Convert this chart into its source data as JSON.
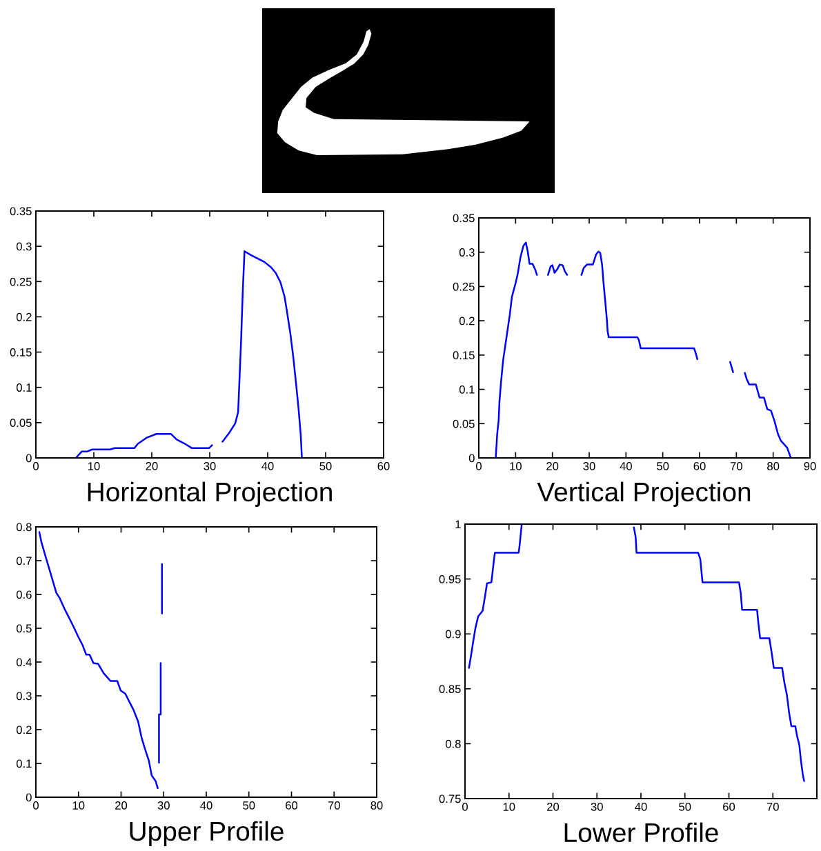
{
  "chart_data": [
    {
      "type": "line",
      "title": "Horizontal Projection",
      "color": "#0000ff",
      "x": [
        6.9,
        7.9,
        8.8,
        9.7,
        12.8,
        13.6,
        17.0,
        17.6,
        19.2,
        20.8,
        23.3,
        24.3,
        25.5,
        26.9,
        29.9,
        30.4,
        31.3,
        32.2,
        33.4,
        34.4,
        34.9,
        35.0,
        35.2,
        35.4,
        35.7,
        36.0,
        37.0,
        38.2,
        39.4,
        40.6,
        41.4,
        42.2,
        42.9,
        43.3,
        43.9,
        44.4,
        44.9,
        45.3,
        45.7,
        45.9
      ],
      "values": [
        0,
        0.009,
        0.009,
        0.012,
        0.012,
        0.014,
        0.014,
        0.02,
        0.029,
        0.034,
        0.034,
        0.026,
        0.021,
        0.014,
        0.014,
        0.018,
        null,
        0.023,
        0.036,
        0.049,
        0.065,
        0.085,
        0.124,
        0.164,
        0.236,
        0.293,
        0.288,
        0.283,
        0.278,
        0.27,
        0.262,
        0.249,
        0.229,
        0.209,
        0.177,
        0.144,
        0.105,
        0.072,
        0.033,
        0
      ],
      "xlim": [
        0,
        60
      ],
      "xticks": [
        0,
        10,
        20,
        30,
        40,
        50,
        60
      ],
      "ylim": [
        0,
        0.35
      ],
      "yticks": [
        0,
        0.05,
        0.1,
        0.15,
        0.2,
        0.25,
        0.3,
        0.35
      ]
    },
    {
      "type": "line",
      "title": "Vertical Projection",
      "color": "#0000ff",
      "x": [
        4.6,
        5.0,
        5.4,
        5.6,
        6.0,
        6.6,
        7.5,
        8.4,
        9.0,
        10.0,
        10.6,
        11.3,
        12.1,
        12.8,
        13.3,
        13.8,
        14.6,
        15.3,
        15.8,
        17.3,
        18.8,
        19.5,
        20.0,
        20.6,
        21.3,
        22.0,
        22.8,
        23.4,
        24.0,
        26.0,
        27.9,
        28.5,
        29.4,
        31.0,
        31.9,
        32.5,
        33.0,
        33.5,
        33.9,
        34.3,
        34.8,
        35.0,
        35.3,
        43.1,
        43.5,
        44.0,
        58.5,
        59.0,
        59.4,
        64.0,
        68.3,
        69.1,
        70.5,
        72.3,
        72.8,
        73.5,
        75.3,
        76.3,
        77.5,
        78.4,
        79.4,
        80.3,
        81.3,
        82.1,
        83.8,
        84.8
      ],
      "values": [
        0,
        0.035,
        0.055,
        0.081,
        0.108,
        0.142,
        0.175,
        0.208,
        0.235,
        0.255,
        0.269,
        0.292,
        0.309,
        0.314,
        0.301,
        0.283,
        0.283,
        0.275,
        0.267,
        null,
        0.267,
        0.279,
        0.281,
        0.27,
        0.275,
        0.282,
        0.281,
        0.272,
        0.267,
        null,
        0.267,
        0.277,
        0.282,
        0.282,
        0.297,
        0.301,
        0.299,
        0.282,
        0.255,
        0.232,
        0.202,
        0.185,
        0.176,
        0.176,
        0.172,
        0.16,
        0.16,
        0.152,
        0.144,
        null,
        0.14,
        0.125,
        null,
        0.124,
        0.115,
        0.107,
        0.107,
        0.088,
        0.088,
        0.071,
        0.069,
        0.055,
        0.035,
        0.025,
        0.015,
        0
      ],
      "xlim": [
        0,
        90
      ],
      "xticks": [
        0,
        10,
        20,
        30,
        40,
        50,
        60,
        70,
        80,
        90
      ],
      "ylim": [
        0,
        0.35
      ],
      "yticks": [
        0,
        0.05,
        0.1,
        0.15,
        0.2,
        0.25,
        0.3,
        0.35
      ]
    },
    {
      "type": "line",
      "title": "Upper Profile",
      "color": "#0000ff",
      "x": [
        0.8,
        1.3,
        2.4,
        3.2,
        4.0,
        4.8,
        5.6,
        6.7,
        7.8,
        8.9,
        9.9,
        11.0,
        11.8,
        12.6,
        13.5,
        14.6,
        15.9,
        17.5,
        19.1,
        19.9,
        21.0,
        21.8,
        22.9,
        24.0,
        24.8,
        25.6,
        26.5,
        27.2,
        28.1,
        28.6,
        28.8,
        28.9,
        28.9,
        29.3,
        29.3,
        29.5,
        29.6,
        29.6
      ],
      "values": [
        0.785,
        0.755,
        0.707,
        0.673,
        0.639,
        0.605,
        0.589,
        0.558,
        0.531,
        0.503,
        0.476,
        0.449,
        0.422,
        0.422,
        0.397,
        0.395,
        0.367,
        0.344,
        0.344,
        0.316,
        0.306,
        0.286,
        0.259,
        0.224,
        0.177,
        0.143,
        0.109,
        0.064,
        0.048,
        0.027,
        null,
        0.102,
        0.245,
        0.245,
        0.397,
        null,
        0.544,
        0.69
      ],
      "xlim": [
        0,
        80
      ],
      "xticks": [
        0,
        10,
        20,
        30,
        40,
        50,
        60,
        70,
        80
      ],
      "ylim": [
        0,
        0.8
      ],
      "yticks": [
        0,
        0.1,
        0.2,
        0.3,
        0.4,
        0.5,
        0.6,
        0.7,
        0.8
      ]
    },
    {
      "type": "line",
      "title": "Lower Profile",
      "color": "#0000ff",
      "x": [
        0.9,
        1.4,
        1.9,
        2.4,
        3.0,
        4.0,
        4.5,
        5.0,
        6.0,
        6.6,
        6.8,
        12.2,
        12.4,
        12.9,
        25.0,
        38.4,
        38.8,
        39.0,
        53.0,
        53.5,
        54.0,
        62.3,
        62.7,
        63.0,
        66.4,
        66.7,
        67.1,
        69.2,
        69.8,
        70.2,
        72.1,
        72.6,
        73.2,
        73.7,
        74.2,
        75.1,
        75.5,
        76.0,
        76.4,
        76.8,
        77.1
      ],
      "values": [
        0.869,
        0.881,
        0.894,
        0.906,
        0.916,
        0.921,
        0.933,
        0.946,
        0.947,
        0.968,
        0.974,
        0.974,
        0.98,
        1,
        null,
        0.997,
        0.988,
        0.974,
        0.974,
        0.968,
        0.947,
        0.947,
        0.937,
        0.922,
        0.922,
        0.91,
        0.896,
        0.896,
        0.881,
        0.869,
        0.869,
        0.856,
        0.844,
        0.828,
        0.816,
        0.816,
        0.807,
        0.799,
        0.784,
        0.772,
        0.766
      ],
      "xlim": [
        0,
        80
      ],
      "xticks": [
        0,
        10,
        20,
        30,
        40,
        50,
        60,
        70,
        {
          "value": 80,
          "label": null
        }
      ],
      "ylim": [
        0.75,
        1
      ],
      "yticks": [
        0.75,
        0.8,
        0.85,
        0.9,
        0.95,
        1
      ]
    }
  ]
}
